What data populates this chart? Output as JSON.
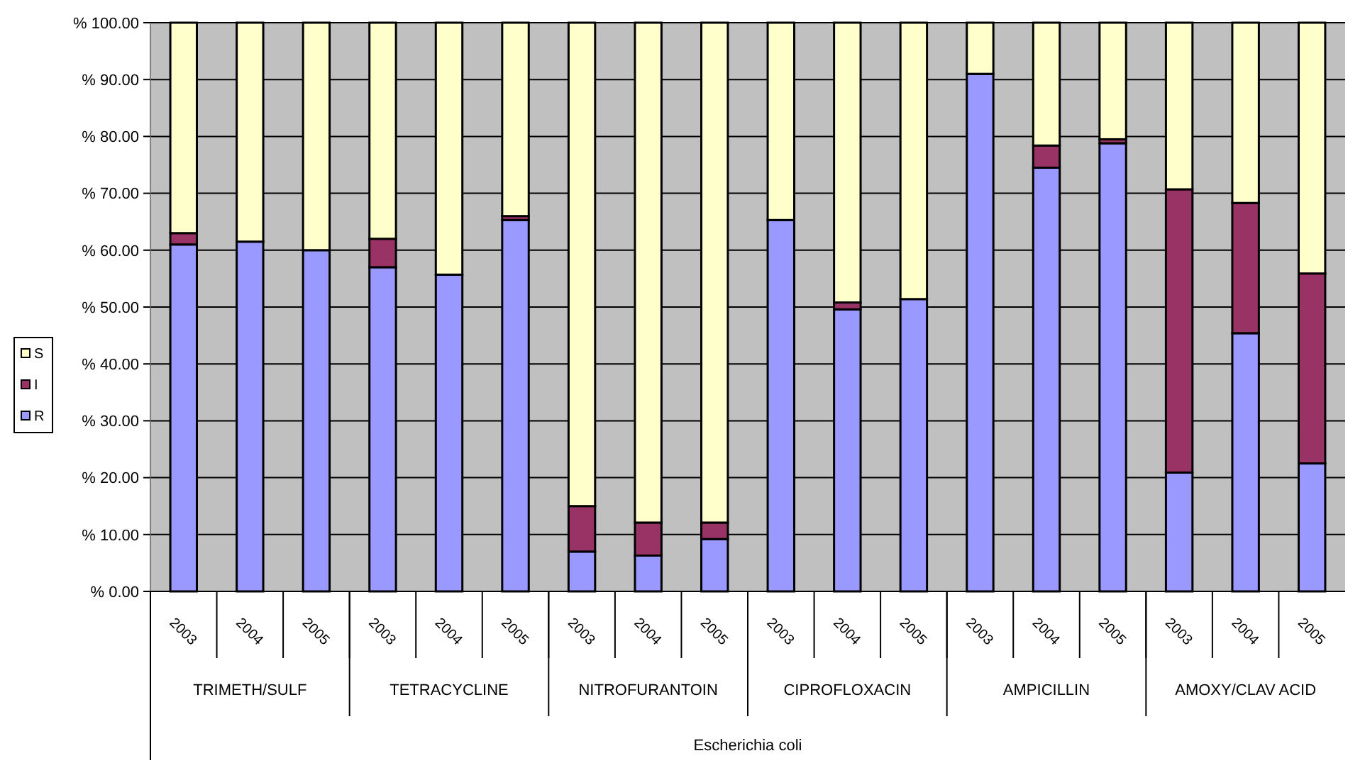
{
  "chart_data": {
    "type": "bar",
    "stacked": true,
    "categories": [
      "2003",
      "2004",
      "2005",
      "2003",
      "2004",
      "2005",
      "2003",
      "2004",
      "2005",
      "2003",
      "2004",
      "2005",
      "2003",
      "2004",
      "2005",
      "2003",
      "2004",
      "2005"
    ],
    "annotations": [
      "TRIMETH/SULF",
      "TETRACYCLINE",
      "NITROFURANTOIN",
      "CIPROFLOXACIN",
      "AMPICILLIN",
      "AMOXY/CLAV ACID",
      "Escherichia coli"
    ],
    "series": [
      {
        "name": "R",
        "color": "#9999ff",
        "values": [
          61,
          61.5,
          60,
          57,
          55.7,
          65.3,
          7,
          6.3,
          9.2,
          65.3,
          49.6,
          51.4,
          91,
          74.5,
          78.8,
          20.9,
          45.4,
          22.5
        ]
      },
      {
        "name": "I",
        "color": "#993366",
        "values": [
          2,
          0,
          0,
          5,
          0,
          0.7,
          8,
          5.8,
          2.9,
          0,
          1.2,
          0,
          0,
          3.9,
          0.7,
          49.8,
          22.9,
          33.4
        ]
      },
      {
        "name": "S",
        "color": "#ffffcc",
        "values": [
          37,
          38.5,
          40,
          38,
          44.3,
          34,
          85,
          87.9,
          87.9,
          34.7,
          49.2,
          48.6,
          9,
          21.6,
          20.5,
          29.3,
          31.7,
          44.1
        ]
      }
    ],
    "ylim": [
      0,
      100
    ],
    "yticks": [
      {
        "value": 0,
        "label": "% 0.00"
      },
      {
        "value": 10,
        "label": "% 10.00"
      },
      {
        "value": 20,
        "label": "% 20.00"
      },
      {
        "value": 30,
        "label": "% 30.00"
      },
      {
        "value": 40,
        "label": "% 40.00"
      },
      {
        "value": 50,
        "label": "% 50.00"
      },
      {
        "value": 60,
        "label": "% 60.00"
      },
      {
        "value": 70,
        "label": "% 70.00"
      },
      {
        "value": 80,
        "label": "% 80.00"
      },
      {
        "value": 90,
        "label": "% 90.00"
      },
      {
        "value": 100,
        "label": "% 100.00"
      }
    ],
    "grid": "y",
    "legend": "left"
  }
}
